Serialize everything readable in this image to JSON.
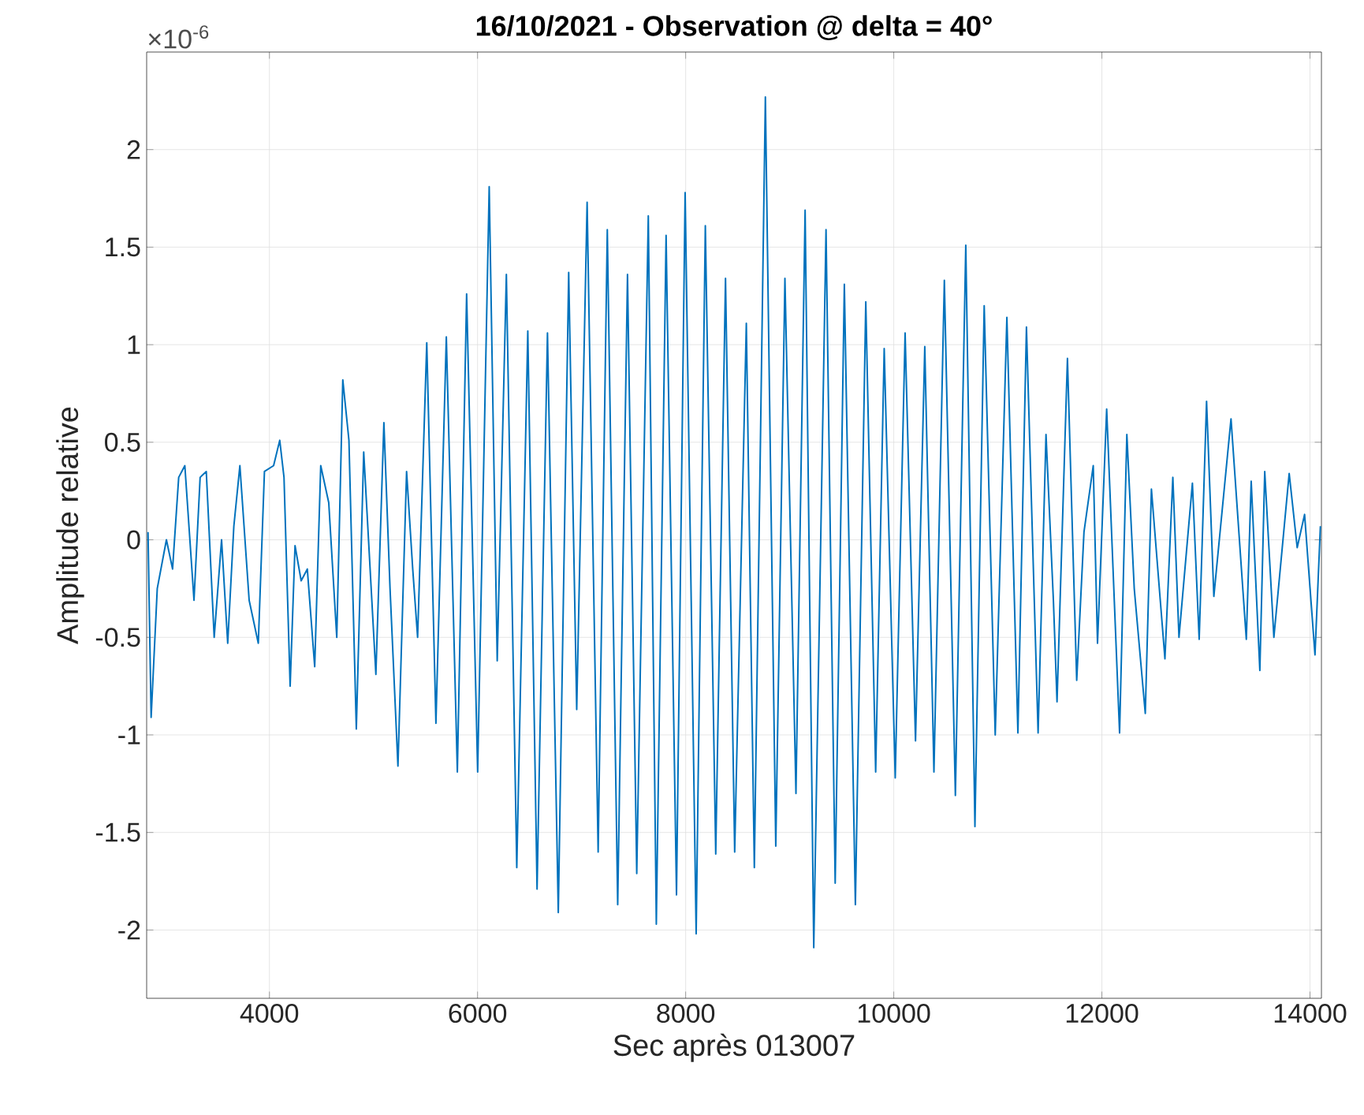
{
  "chart_data": {
    "type": "line",
    "title": "16/10/2021 - Observation @ delta = 40°",
    "xlabel": "Sec après 013007",
    "ylabel": "Amplitude relative",
    "annotations": [
      "×10$^{-6}$"
    ],
    "color": "#0072bd",
    "grid": true,
    "xlim": [
      2820,
      14110
    ],
    "ylim": [
      -2.35,
      2.5
    ],
    "xticks": [
      4000,
      6000,
      8000,
      10000,
      12000,
      14000
    ],
    "yticks": [
      -2,
      -1.5,
      -1,
      -0.5,
      0,
      0.5,
      1,
      1.5,
      2
    ],
    "x": [
      2833,
      2863,
      2922,
      3010,
      3069,
      3128,
      3187,
      3275,
      3334,
      3393,
      3469,
      3540,
      3599,
      3658,
      3716,
      3805,
      3893,
      3952,
      4040,
      4099,
      4140,
      4199,
      4246,
      4305,
      4364,
      4435,
      4493,
      4570,
      4647,
      4705,
      4764,
      4835,
      4906,
      5023,
      5100,
      5159,
      5235,
      5318,
      5377,
      5424,
      5512,
      5600,
      5700,
      5806,
      5895,
      6001,
      6112,
      6189,
      6277,
      6377,
      6483,
      6572,
      6672,
      6776,
      6876,
      6953,
      7053,
      7159,
      7247,
      7347,
      7441,
      7530,
      7641,
      7718,
      7812,
      7912,
      7995,
      8101,
      8189,
      8289,
      8383,
      8471,
      8583,
      8660,
      8766,
      8866,
      8954,
      9060,
      9148,
      9231,
      9349,
      9437,
      9525,
      9631,
      9731,
      9826,
      9908,
      10014,
      10109,
      10209,
      10298,
      10386,
      10486,
      10592,
      10692,
      10780,
      10869,
      10975,
      11087,
      11193,
      11275,
      11387,
      11463,
      11534,
      11569,
      11669,
      11758,
      11828,
      11917,
      11958,
      12046,
      12170,
      12240,
      12311,
      12417,
      12476,
      12606,
      12682,
      12741,
      12870,
      12935,
      13006,
      13076,
      13241,
      13388,
      13435,
      13518,
      13565,
      13653,
      13800,
      13877,
      13948,
      14048,
      14100
    ],
    "values": [
      0.04,
      -0.91,
      -0.25,
      0.0,
      -0.15,
      0.32,
      0.38,
      -0.31,
      0.32,
      0.35,
      -0.5,
      0.0,
      -0.53,
      0.07,
      0.38,
      -0.31,
      -0.53,
      0.35,
      0.38,
      0.51,
      0.32,
      -0.75,
      -0.03,
      -0.21,
      -0.15,
      -0.65,
      0.38,
      0.19,
      -0.5,
      0.82,
      0.51,
      -0.97,
      0.45,
      -0.69,
      0.6,
      -0.25,
      -1.16,
      0.35,
      -0.15,
      -0.5,
      1.01,
      -0.94,
      1.04,
      -1.19,
      1.26,
      -1.19,
      1.81,
      -0.62,
      1.36,
      -1.68,
      1.07,
      -1.79,
      1.06,
      -1.91,
      1.37,
      -0.87,
      1.73,
      -1.6,
      1.59,
      -1.87,
      1.36,
      -1.71,
      1.66,
      -1.97,
      1.56,
      -1.82,
      1.78,
      -2.02,
      1.61,
      -1.61,
      1.34,
      -1.6,
      1.11,
      -1.68,
      2.27,
      -1.57,
      1.34,
      -1.3,
      1.69,
      -2.09,
      1.59,
      -1.76,
      1.31,
      -1.87,
      1.22,
      -1.19,
      0.98,
      -1.22,
      1.06,
      -1.03,
      0.99,
      -1.19,
      1.33,
      -1.31,
      1.51,
      -1.47,
      1.2,
      -1.0,
      1.14,
      -0.99,
      1.09,
      -0.99,
      0.54,
      -0.31,
      -0.83,
      0.93,
      -0.72,
      0.04,
      0.38,
      -0.53,
      0.67,
      -0.99,
      0.54,
      -0.25,
      -0.89,
      0.26,
      -0.61,
      0.32,
      -0.5,
      0.29,
      -0.51,
      0.71,
      -0.29,
      0.62,
      -0.51,
      0.3,
      -0.67,
      0.35,
      -0.5,
      0.34,
      -0.04,
      0.13,
      -0.59,
      0.07
    ]
  }
}
